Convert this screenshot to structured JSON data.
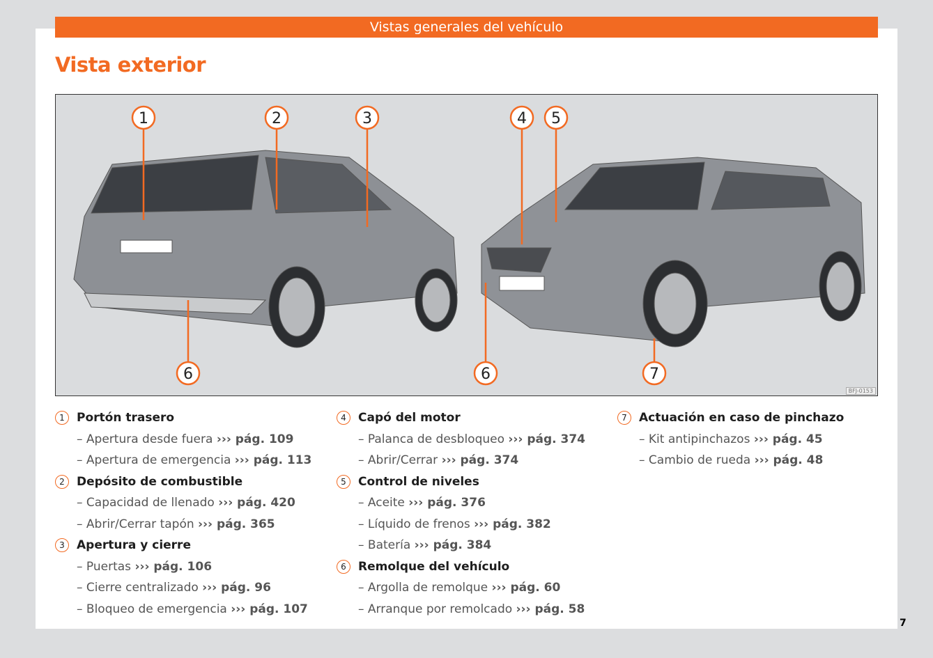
{
  "header": {
    "section": "Vistas generales del vehículo",
    "title": "Vista exterior"
  },
  "figure": {
    "code": "BFJ-0153",
    "callouts": [
      "1",
      "2",
      "3",
      "4",
      "5",
      "6",
      "6",
      "7"
    ]
  },
  "columns": [
    [
      {
        "n": "1",
        "title": "Portón trasero",
        "items": [
          {
            "t": "– Apertura desde fuera",
            "r": "››› pág. 109"
          },
          {
            "t": "– Apertura de emergencia",
            "r": "››› pág. 113"
          }
        ]
      },
      {
        "n": "2",
        "title": "Depósito de combustible",
        "items": [
          {
            "t": "– Capacidad de llenado",
            "r": "››› pág. 420"
          },
          {
            "t": "– Abrir/Cerrar tapón",
            "r": "››› pág. 365"
          }
        ]
      },
      {
        "n": "3",
        "title": "Apertura y cierre",
        "items": [
          {
            "t": "– Puertas",
            "r": "››› pág. 106"
          },
          {
            "t": "– Cierre centralizado",
            "r": "››› pág. 96"
          },
          {
            "t": "– Bloqueo de emergencia",
            "r": "››› pág. 107"
          }
        ]
      }
    ],
    [
      {
        "n": "4",
        "title": "Capó del motor",
        "items": [
          {
            "t": "– Palanca de desbloqueo",
            "r": "››› pág. 374"
          },
          {
            "t": "– Abrir/Cerrar",
            "r": "››› pág. 374"
          }
        ]
      },
      {
        "n": "5",
        "title": "Control de niveles",
        "items": [
          {
            "t": "– Aceite",
            "r": "››› pág. 376"
          },
          {
            "t": "– Líquido de frenos",
            "r": "››› pág. 382"
          },
          {
            "t": "– Batería",
            "r": "››› pág. 384"
          }
        ]
      },
      {
        "n": "6",
        "title": "Remolque del vehículo",
        "items": [
          {
            "t": "– Argolla de remolque",
            "r": "››› pág. 60"
          },
          {
            "t": "– Arranque por remolcado",
            "r": "››› pág. 58"
          }
        ]
      }
    ],
    [
      {
        "n": "7",
        "title": "Actuación en caso de pinchazo",
        "items": [
          {
            "t": "– Kit antipinchazos",
            "r": "››› pág. 45"
          },
          {
            "t": "– Cambio de rueda",
            "r": "››› pág. 48"
          }
        ]
      }
    ]
  ],
  "page_number": "7",
  "colors": {
    "accent": "#f26a22"
  }
}
